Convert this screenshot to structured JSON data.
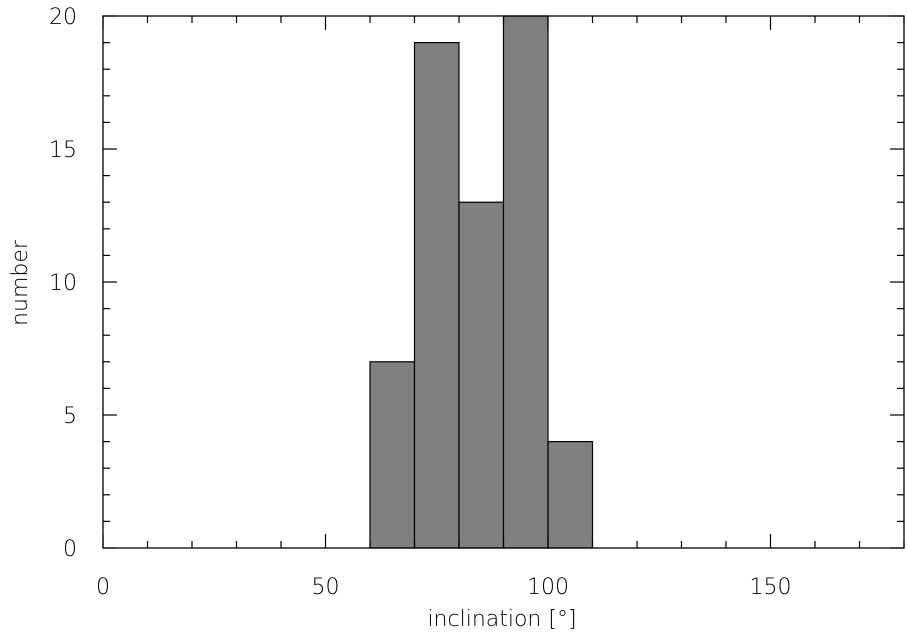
{
  "chart_data": {
    "type": "bar",
    "title": "",
    "xlabel": "inclination [°]",
    "ylabel": "number",
    "xlim": [
      0,
      180
    ],
    "ylim": [
      0,
      20
    ],
    "bin_width": 10,
    "bins": [
      {
        "x0": 60,
        "x1": 70,
        "value": 7
      },
      {
        "x0": 70,
        "x1": 80,
        "value": 19
      },
      {
        "x0": 80,
        "x1": 90,
        "value": 13
      },
      {
        "x0": 90,
        "x1": 100,
        "value": 20
      },
      {
        "x0": 100,
        "x1": 110,
        "value": 4
      }
    ],
    "x_major_ticks": [
      0,
      50,
      100,
      150
    ],
    "x_tick_labels": [
      "0",
      "50",
      "100",
      "150"
    ],
    "x_minor_step": 10,
    "y_major_ticks": [
      0,
      5,
      10,
      15,
      20
    ],
    "y_tick_labels": [
      "0",
      "5",
      "10",
      "15",
      "20"
    ],
    "y_minor_step": 1,
    "bar_color": "#808080",
    "edge_color": "#000000",
    "grid": false
  }
}
